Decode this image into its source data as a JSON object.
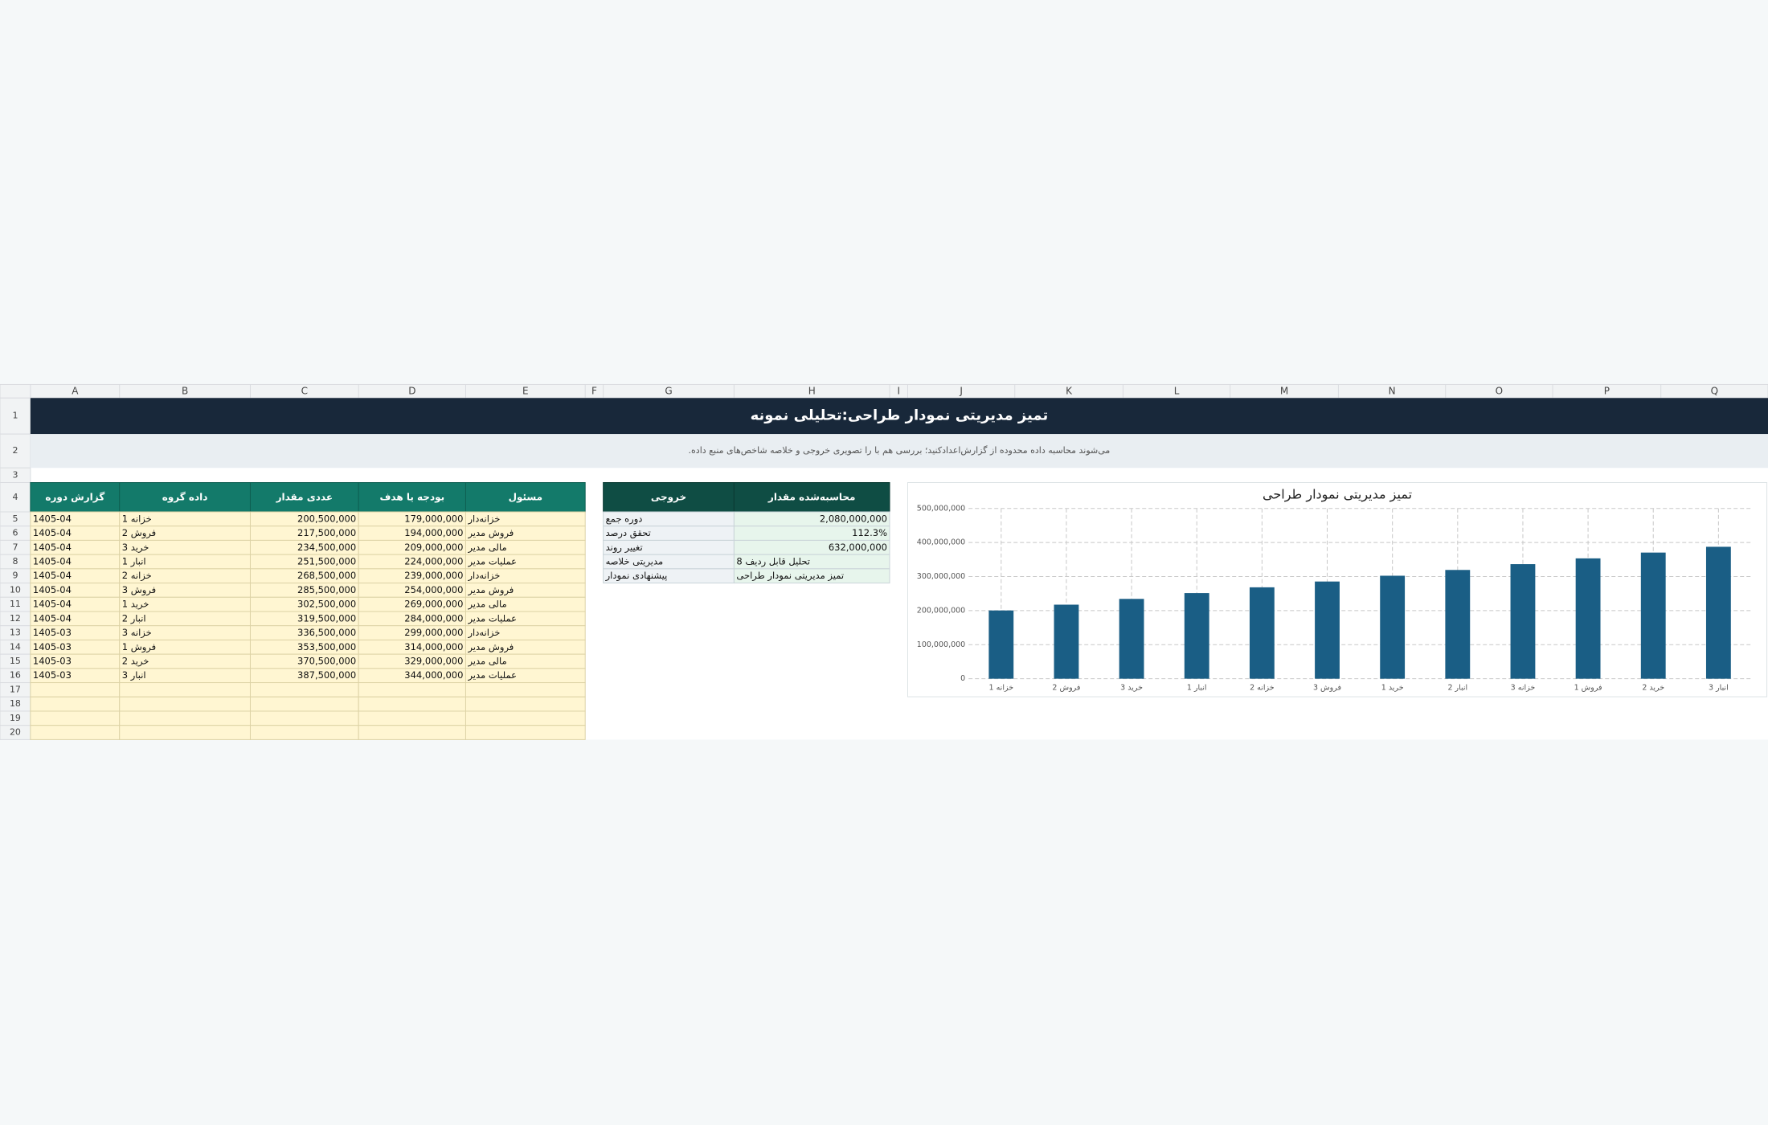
{
  "sheet": {
    "columns": [
      "A",
      "B",
      "C",
      "D",
      "E",
      "F",
      "G",
      "H",
      "I",
      "J",
      "K",
      "L",
      "M",
      "N",
      "O",
      "P",
      "Q"
    ],
    "row_numbers": [
      1,
      2,
      3,
      4,
      5,
      6,
      7,
      8,
      9,
      10,
      11,
      12,
      13,
      14,
      15,
      16,
      17,
      18,
      19,
      20
    ],
    "title": "تمیز مدیریتی نمودار طراحی:تحلیلی نمونه",
    "subtitle": ".می‌شوند محاسبه داده محدوده از گزارش‌اعدادکنید؛ بررسی هم با را تصویری خروجی و خلاصه شاخص‌های منبع داده",
    "table": {
      "headers": [
        "گزارش دوره",
        "داده گروه",
        "عددی مقدار",
        "بودجه یا هدف",
        "مسئول"
      ],
      "rows": [
        [
          "1405-04",
          "1 خزانه",
          "200,500,000",
          "179,000,000",
          "خزانه‌دار"
        ],
        [
          "1405-04",
          "2 فروش",
          "217,500,000",
          "194,000,000",
          "فروش مدیر"
        ],
        [
          "1405-04",
          "3 خرید",
          "234,500,000",
          "209,000,000",
          "مالی مدیر"
        ],
        [
          "1405-04",
          "1 انبار",
          "251,500,000",
          "224,000,000",
          "عملیات مدیر"
        ],
        [
          "1405-04",
          "2 خزانه",
          "268,500,000",
          "239,000,000",
          "خزانه‌دار"
        ],
        [
          "1405-04",
          "3 فروش",
          "285,500,000",
          "254,000,000",
          "فروش مدیر"
        ],
        [
          "1405-04",
          "1 خرید",
          "302,500,000",
          "269,000,000",
          "مالی مدیر"
        ],
        [
          "1405-04",
          "2 انبار",
          "319,500,000",
          "284,000,000",
          "عملیات مدیر"
        ],
        [
          "1405-03",
          "3 خزانه",
          "336,500,000",
          "299,000,000",
          "خزانه‌دار"
        ],
        [
          "1405-03",
          "1 فروش",
          "353,500,000",
          "314,000,000",
          "فروش مدیر"
        ],
        [
          "1405-03",
          "2 خرید",
          "370,500,000",
          "329,000,000",
          "مالی مدیر"
        ],
        [
          "1405-03",
          "3 انبار",
          "387,500,000",
          "344,000,000",
          "عملیات مدیر"
        ]
      ]
    },
    "summary": {
      "headers": [
        "خروجی",
        "محاسبه‌شده مقدار"
      ],
      "rows": [
        [
          "دوره جمع",
          "2,080,000,000"
        ],
        [
          "تحقق درصد",
          "112.3%"
        ],
        [
          "تغییر روند",
          "632,000,000"
        ],
        [
          "مدیریتی خلاصه",
          "تحلیل قابل ردیف 8"
        ],
        [
          "پیشنهادی نمودار",
          "تمیز مدیریتی نمودار طراحی"
        ]
      ]
    }
  },
  "chart_data": {
    "type": "bar",
    "title": "تمیز مدیریتی نمودار طراحی",
    "categories": [
      "خزانه 1",
      "فروش 2",
      "خرید 3",
      "انبار 1",
      "خزانه 2",
      "فروش 3",
      "خرید 1",
      "انبار 2",
      "خزانه 3",
      "فروش 1",
      "خرید 2",
      "انبار 3"
    ],
    "values": [
      200500000,
      217500000,
      234500000,
      251500000,
      268500000,
      285500000,
      302500000,
      319500000,
      336500000,
      353500000,
      370500000,
      387500000
    ],
    "color": "#1a5e85",
    "ylim": [
      0,
      500000000
    ],
    "yticks": [
      0,
      {
        "value": 100000000,
        "label": "100,000,000"
      },
      {
        "value": 200000000,
        "label": "200,000,000"
      },
      {
        "value": 300000000,
        "label": "300,000,000"
      },
      {
        "value": 400000000,
        "label": "400,000,000"
      },
      {
        "value": 500000000,
        "label": "500,000,000"
      }
    ],
    "grid": true
  }
}
